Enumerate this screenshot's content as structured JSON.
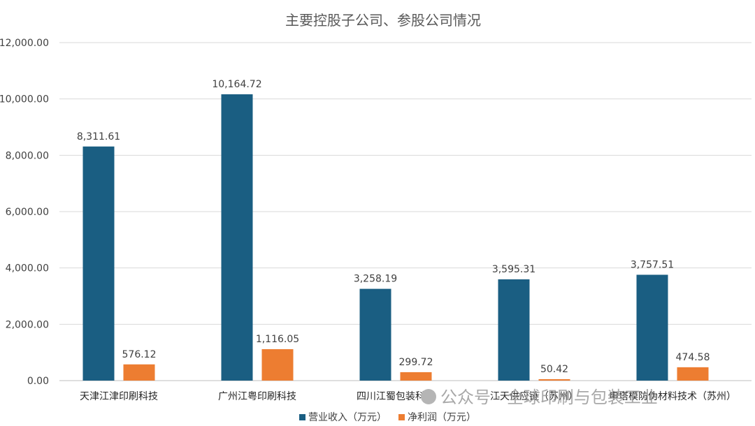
{
  "chart_data": {
    "type": "bar",
    "title": "主要控股子公司、参股公司情况",
    "categories": [
      "天津江津印刷科技",
      "广州江粤印刷科技",
      "四川江蜀包装科技",
      "江天供应链（苏州）",
      "申塔模防伪材料技术（苏州）"
    ],
    "series": [
      {
        "name": "营业收入（万元）",
        "color": "#1a5e82",
        "values": [
          8311.61,
          10164.72,
          3258.19,
          3595.31,
          3757.51
        ],
        "labels": [
          "8,311.61",
          "10,164.72",
          "3,258.19",
          "3,595.31",
          "3,757.51"
        ]
      },
      {
        "name": "净利润（万元）",
        "color": "#ed7d31",
        "values": [
          576.12,
          1116.05,
          299.72,
          50.42,
          474.58
        ],
        "labels": [
          "576.12",
          "1,116.05",
          "299.72",
          "50.42",
          "474.58"
        ]
      }
    ],
    "ylim": [
      0,
      12000
    ],
    "yticks": [
      0,
      2000,
      4000,
      6000,
      8000,
      10000,
      12000
    ],
    "ytick_labels": [
      "0.00",
      "2,000.00",
      "4,000.00",
      "6,000.00",
      "8,000.00",
      "10,000.00",
      "12,000.00"
    ],
    "grid": true,
    "legend_position": "bottom"
  },
  "watermark": "公众号 · 全球印刷与包装工业"
}
